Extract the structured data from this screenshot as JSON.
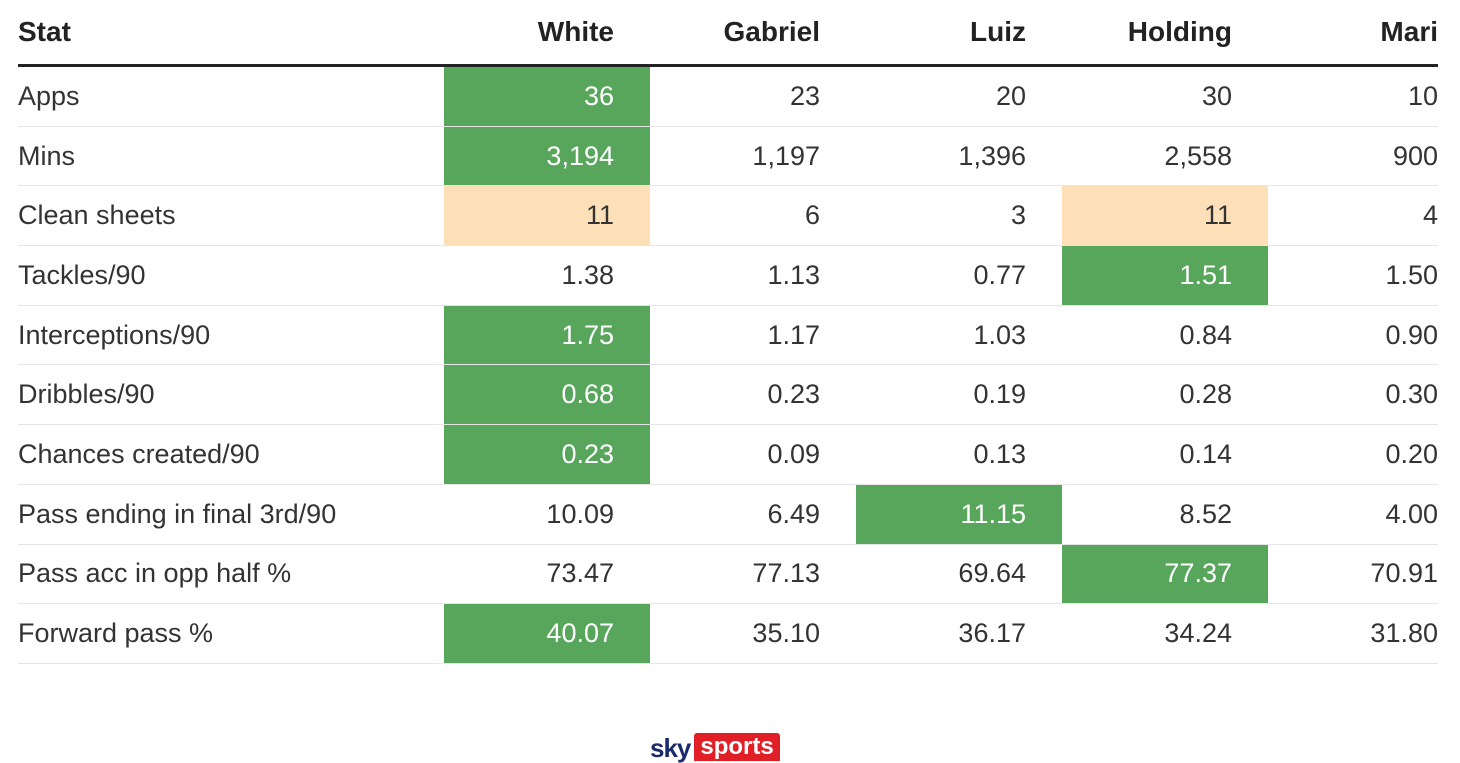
{
  "chart_data": {
    "type": "table",
    "columns": [
      "Stat",
      "White",
      "Gabriel",
      "Luiz",
      "Holding",
      "Mari"
    ],
    "rows": [
      {
        "label": "Apps",
        "values": [
          "36",
          "23",
          "20",
          "30",
          "10"
        ],
        "highlight": [
          "green",
          "",
          "",
          "",
          ""
        ]
      },
      {
        "label": "Mins",
        "values": [
          "3,194",
          "1,197",
          "1,396",
          "2,558",
          "900"
        ],
        "highlight": [
          "green",
          "",
          "",
          "",
          ""
        ]
      },
      {
        "label": "Clean sheets",
        "values": [
          "11",
          "6",
          "3",
          "11",
          "4"
        ],
        "highlight": [
          "amber",
          "",
          "",
          "amber",
          ""
        ]
      },
      {
        "label": "Tackles/90",
        "values": [
          "1.38",
          "1.13",
          "0.77",
          "1.51",
          "1.50"
        ],
        "highlight": [
          "",
          "",
          "",
          "green",
          ""
        ]
      },
      {
        "label": "Interceptions/90",
        "values": [
          "1.75",
          "1.17",
          "1.03",
          "0.84",
          "0.90"
        ],
        "highlight": [
          "green",
          "",
          "",
          "",
          ""
        ]
      },
      {
        "label": "Dribbles/90",
        "values": [
          "0.68",
          "0.23",
          "0.19",
          "0.28",
          "0.30"
        ],
        "highlight": [
          "green",
          "",
          "",
          "",
          ""
        ]
      },
      {
        "label": "Chances created/90",
        "values": [
          "0.23",
          "0.09",
          "0.13",
          "0.14",
          "0.20"
        ],
        "highlight": [
          "green",
          "",
          "",
          "",
          ""
        ]
      },
      {
        "label": "Pass ending in final 3rd/90",
        "values": [
          "10.09",
          "6.49",
          "11.15",
          "8.52",
          "4.00"
        ],
        "highlight": [
          "",
          "",
          "green",
          "",
          ""
        ]
      },
      {
        "label": "Pass acc in opp half %",
        "values": [
          "73.47",
          "77.13",
          "69.64",
          "77.37",
          "70.91"
        ],
        "highlight": [
          "",
          "",
          "",
          "green",
          ""
        ]
      },
      {
        "label": "Forward pass %",
        "values": [
          "40.07",
          "35.10",
          "36.17",
          "34.24",
          "31.80"
        ],
        "highlight": [
          "green",
          "",
          "",
          "",
          ""
        ]
      }
    ]
  },
  "colors": {
    "green": "#58a55c",
    "amber": "#fde0b8",
    "header_rule": "#222222"
  },
  "footer": {
    "logo_sky": "sky",
    "logo_sports": "sports"
  }
}
